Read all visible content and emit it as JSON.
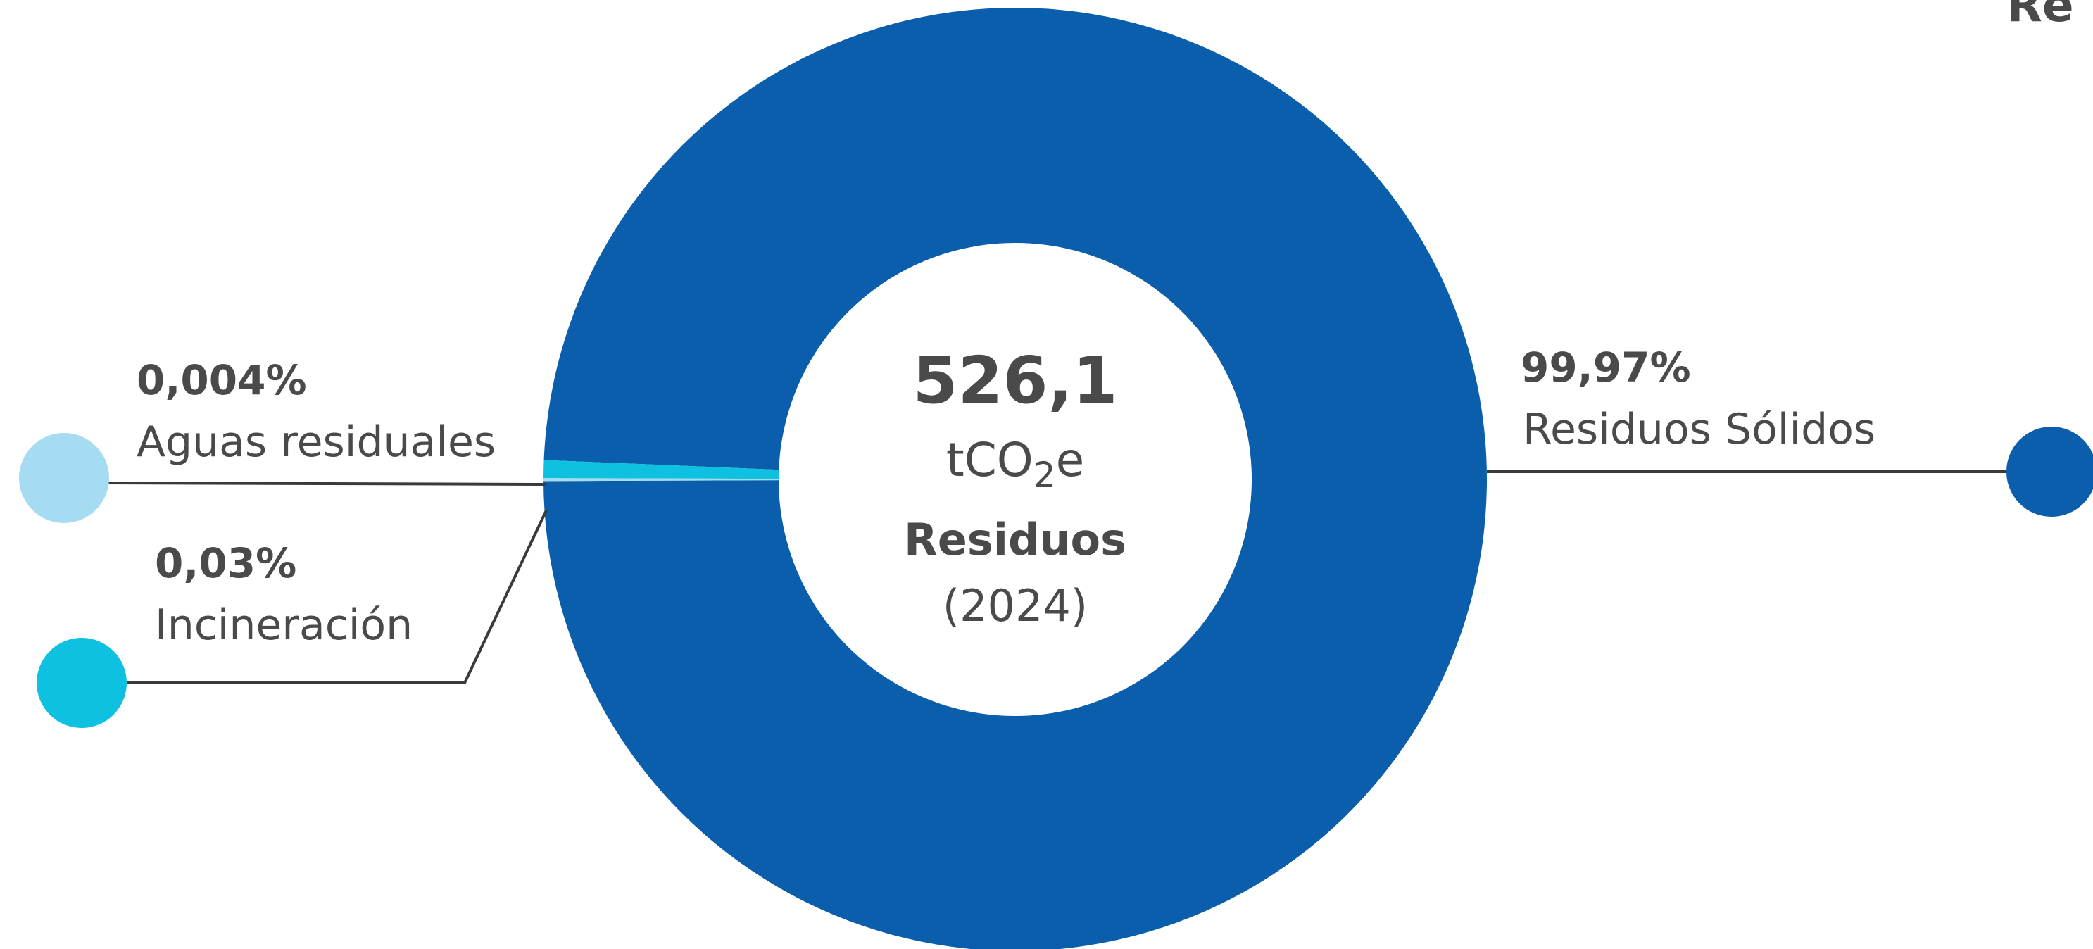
{
  "corner_text": "Re",
  "center": {
    "value": "526,1",
    "unit_main": "tCO",
    "unit_sub": "2",
    "unit_tail": "e",
    "category": "Residuos",
    "year": "(2024)"
  },
  "colors": {
    "residuos_solidos": "#0a5eab",
    "incineracion": "#0ec1e0",
    "aguas_residuales": "#a6dcf1"
  },
  "chart_data": {
    "type": "pie",
    "donut": true,
    "total": 526.1,
    "slices": [
      {
        "name": "Residuos Sólidos",
        "label": "99,97%",
        "value": 99.97,
        "color": "#0a5eab"
      },
      {
        "name": "Incineración",
        "label": "0,03%",
        "value": 0.03,
        "color": "#0ec1e0"
      },
      {
        "name": "Aguas residuales",
        "label": "0,004%",
        "value": 0.004,
        "color": "#a6dcf1"
      }
    ]
  }
}
